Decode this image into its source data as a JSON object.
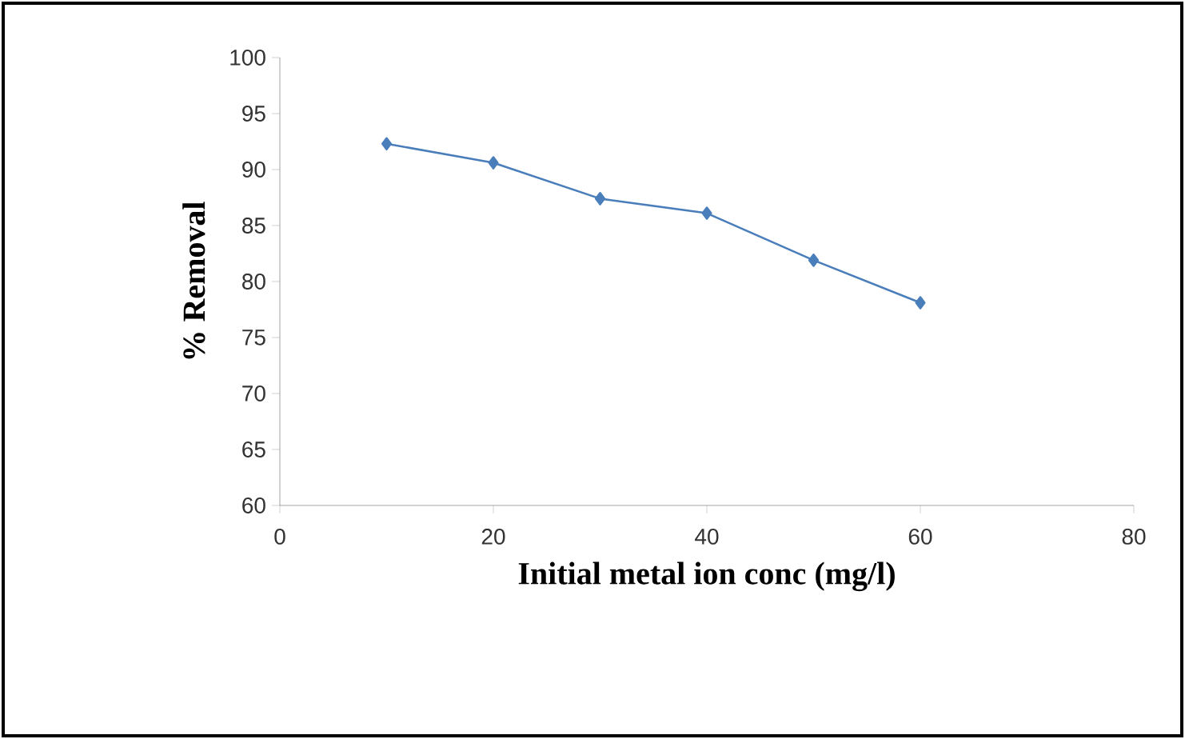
{
  "chart_data": {
    "type": "line",
    "xlabel": "Initial metal ion conc (mg/l)",
    "ylabel": "% Removal",
    "x": [
      10,
      20,
      30,
      40,
      50,
      60
    ],
    "series": [
      {
        "color": "#4a7ebb",
        "values": [
          92.3,
          90.6,
          87.4,
          86.1,
          81.9,
          78.1
        ]
      }
    ],
    "xlim": [
      0,
      80
    ],
    "xticks": [
      0,
      20,
      40,
      60,
      80
    ],
    "ylim": [
      60,
      100
    ],
    "yticks": [
      60,
      65,
      70,
      75,
      80,
      85,
      90,
      95,
      100
    ],
    "grid": false,
    "marker": "diamond",
    "line_style": "solid"
  }
}
